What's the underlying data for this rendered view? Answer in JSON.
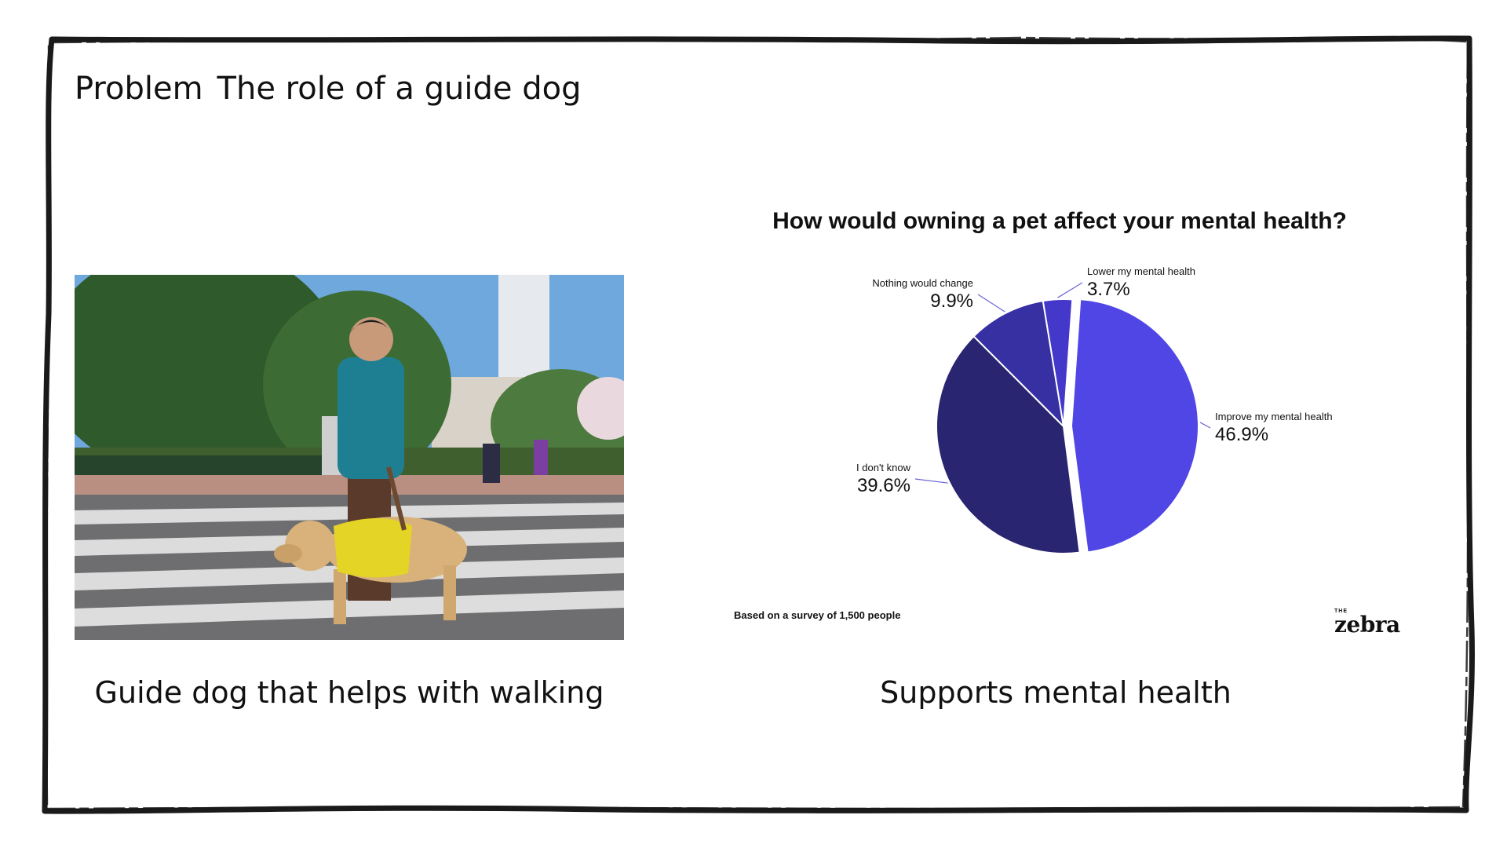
{
  "slide": {
    "kicker": "Problem",
    "title": "The role of a guide dog",
    "left_caption": "Guide dog that helps with walking",
    "right_caption": "Supports mental health"
  },
  "photo": {
    "icon": "guide-dog-photo"
  },
  "chart_data": {
    "type": "pie",
    "title": "How would owning a pet affect your mental health?",
    "slices": [
      {
        "label": "Improve my mental health",
        "value_label": "46.9%",
        "value": 46.9,
        "color": "#4F46E5"
      },
      {
        "label": "I don't know",
        "value_label": "39.6%",
        "value": 39.6,
        "color": "#2A2570"
      },
      {
        "label": "Nothing would change",
        "value_label": "9.9%",
        "value": 9.9,
        "color": "#3730A3"
      },
      {
        "label": "Lower my mental health",
        "value_label": "3.7%",
        "value": 3.7,
        "color": "#4338CA"
      }
    ],
    "note": "Based on a survey of 1,500 people",
    "source_brand_small": "THE",
    "source_brand": "zebra"
  },
  "colors": {
    "frame": "#1a1a1a",
    "background": "#ffffff"
  }
}
